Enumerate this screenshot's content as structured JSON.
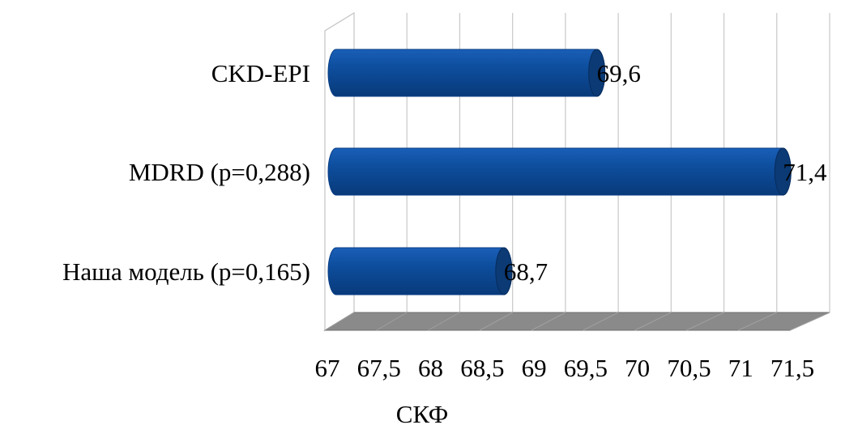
{
  "chart_data": {
    "type": "bar",
    "orientation": "horizontal",
    "categories": [
      "CKD-EPI",
      "MDRD (p=0,288)",
      "Наша модель (p=0,165)"
    ],
    "values": [
      69.6,
      71.4,
      68.7
    ],
    "data_labels": [
      "69,6",
      "71,4",
      "68,7"
    ],
    "xlabel": "СКФ",
    "xlim": [
      67,
      71.5
    ],
    "x_ticks": [
      "67",
      "67,5",
      "68",
      "68,5",
      "69",
      "69,5",
      "70",
      "70,5",
      "71",
      "71,5"
    ],
    "grid": true,
    "style": "3d-cylinder",
    "bar_color": "#0b4c9e"
  }
}
